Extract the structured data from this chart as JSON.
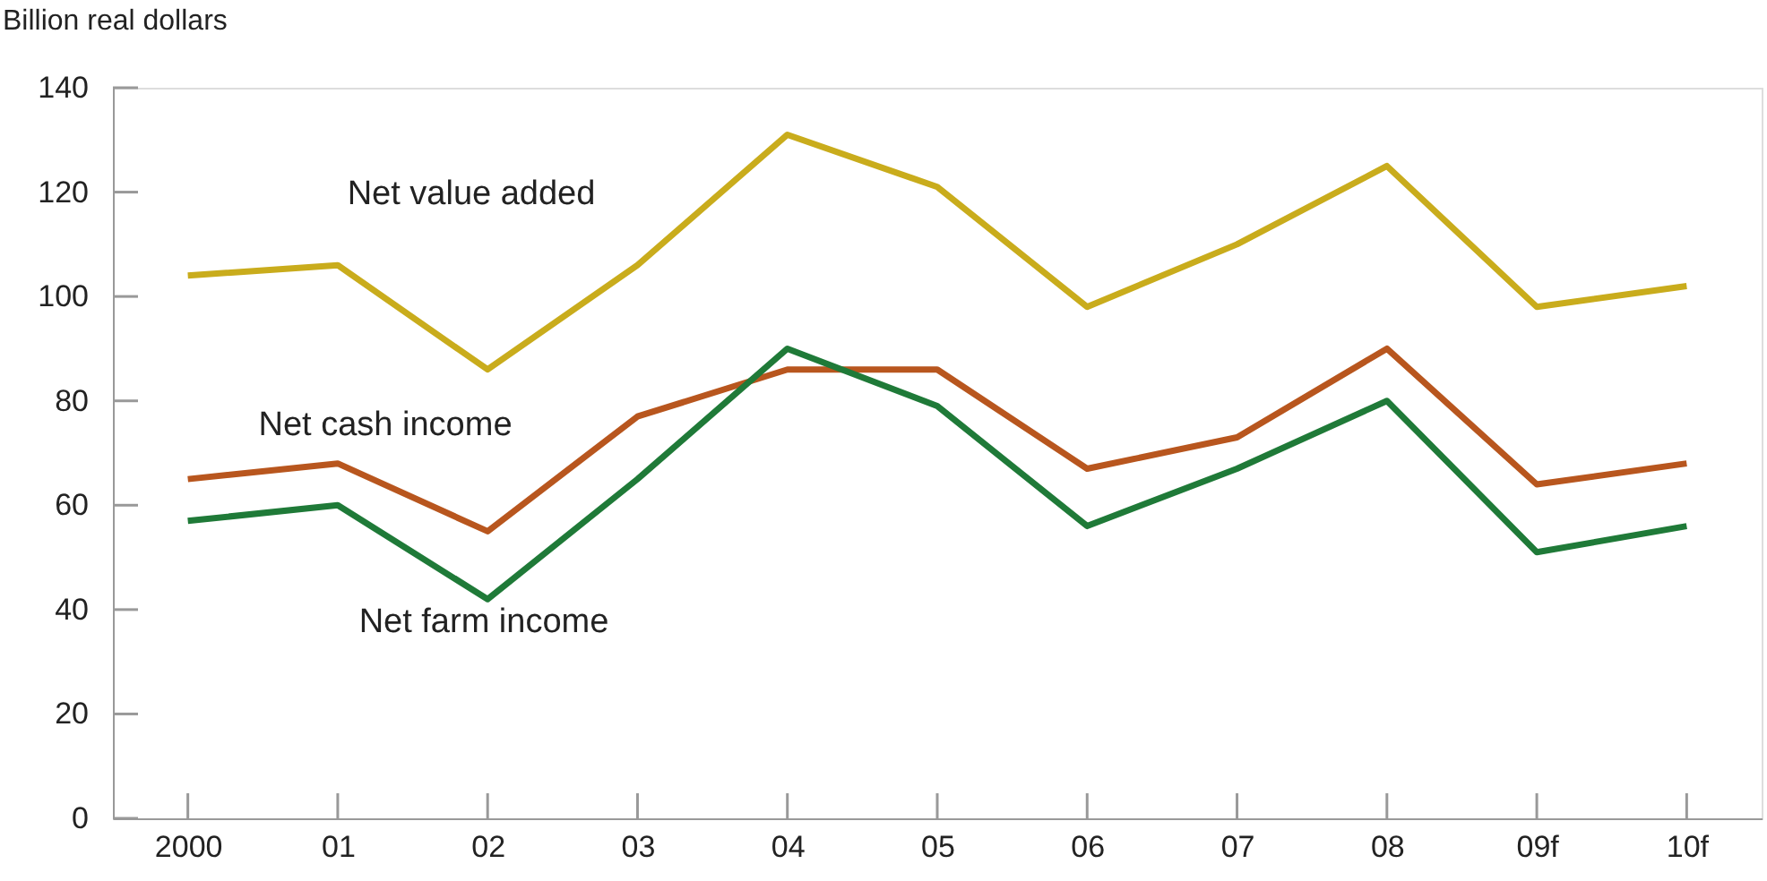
{
  "chart_data": {
    "type": "line",
    "ylabel": "Billion real dollars",
    "categories": [
      "2000",
      "01",
      "02",
      "03",
      "04",
      "05",
      "06",
      "07",
      "08",
      "09f",
      "10f"
    ],
    "series": [
      {
        "name": "Net value added",
        "color": "#c9ac1c",
        "values": [
          104,
          106,
          86,
          106,
          131,
          121,
          98,
          110,
          125,
          98,
          102
        ]
      },
      {
        "name": "Net cash income",
        "color": "#b8561e",
        "values": [
          65,
          68,
          55,
          77,
          86,
          86,
          67,
          73,
          90,
          64,
          68
        ]
      },
      {
        "name": "Net farm income",
        "color": "#1f7a38",
        "values": [
          57,
          60,
          42,
          65,
          90,
          79,
          56,
          67,
          80,
          51,
          56
        ]
      }
    ],
    "ylim": [
      0,
      140
    ],
    "yticks": [
      0,
      20,
      40,
      60,
      80,
      100,
      120,
      140
    ],
    "grid": false,
    "legend": false,
    "marker": "none",
    "line_style": "solid"
  }
}
